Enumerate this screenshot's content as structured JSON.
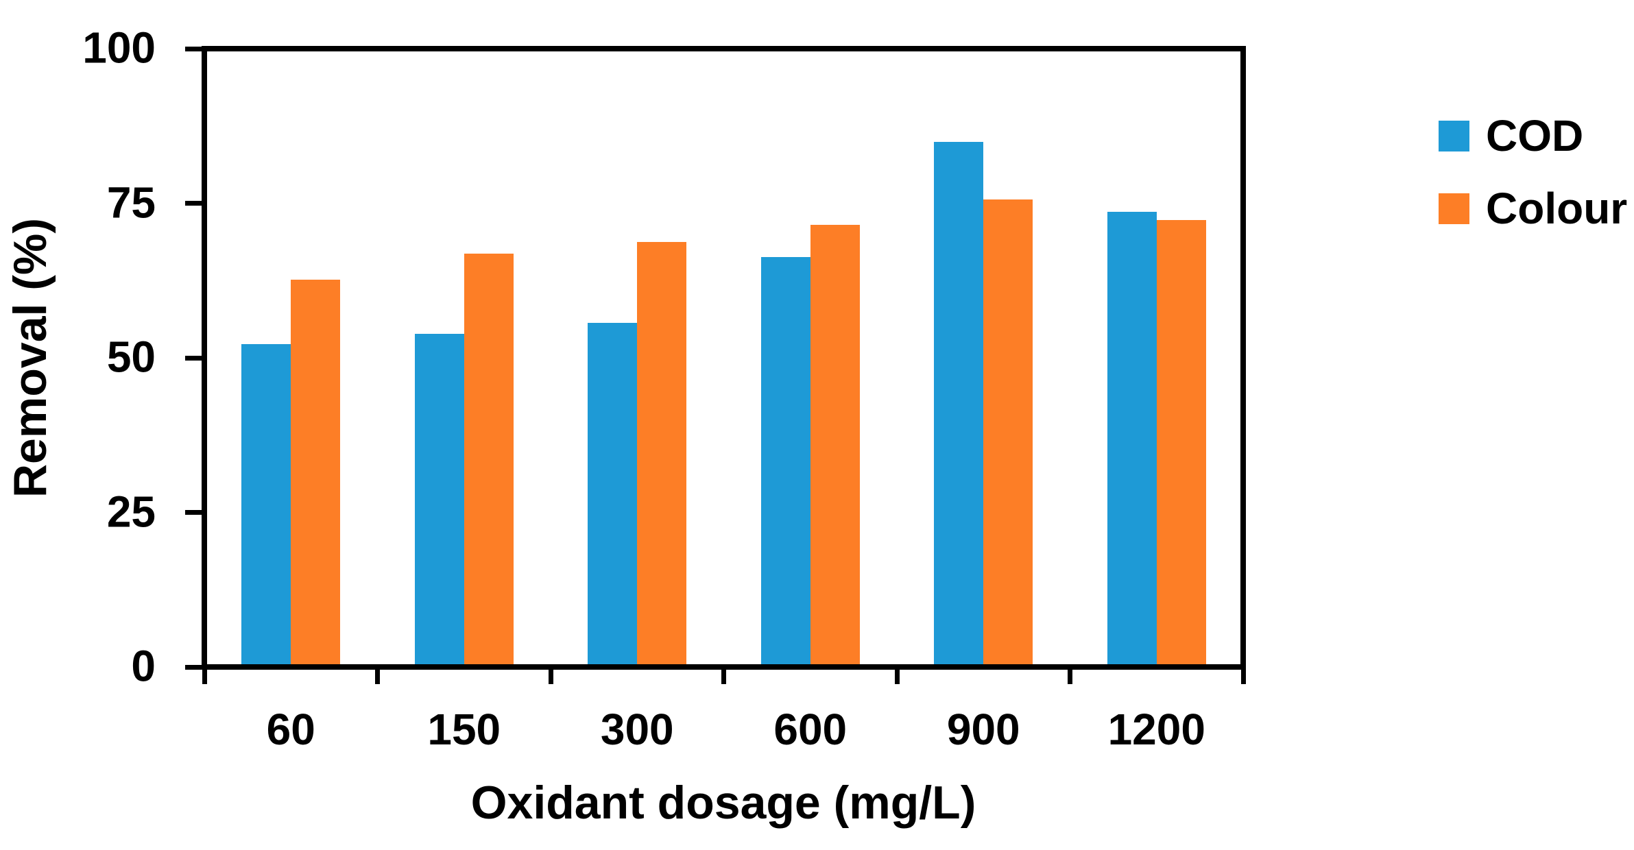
{
  "chart_data": {
    "type": "bar",
    "title": "",
    "xlabel": "Oxidant dosage (mg/L)",
    "ylabel": "Removal (%)",
    "categories": [
      "60",
      "150",
      "300",
      "600",
      "900",
      "1200"
    ],
    "series": [
      {
        "name": "COD",
        "color": "#1e9ad6",
        "values": [
          52.2,
          53.9,
          55.7,
          66.3,
          84.9,
          73.6
        ]
      },
      {
        "name": "Colour",
        "color": "#fd7e26",
        "values": [
          62.6,
          66.9,
          68.7,
          71.5,
          75.6,
          72.3
        ]
      }
    ],
    "ylim": [
      0,
      100
    ],
    "yticks": [
      0,
      25,
      50,
      75,
      100
    ],
    "grid": false,
    "legend_position": "right",
    "frame_color": "#000000",
    "text_color": "#000000"
  }
}
